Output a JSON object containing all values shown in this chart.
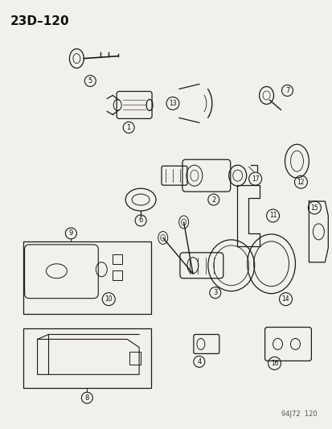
{
  "title": "23D–120",
  "footer": "94J72  120",
  "bg_color": "#f2f0eb",
  "line_color": "#1a1a1a",
  "text_color": "#111111",
  "fig_width": 4.14,
  "fig_height": 5.33,
  "dpi": 100
}
